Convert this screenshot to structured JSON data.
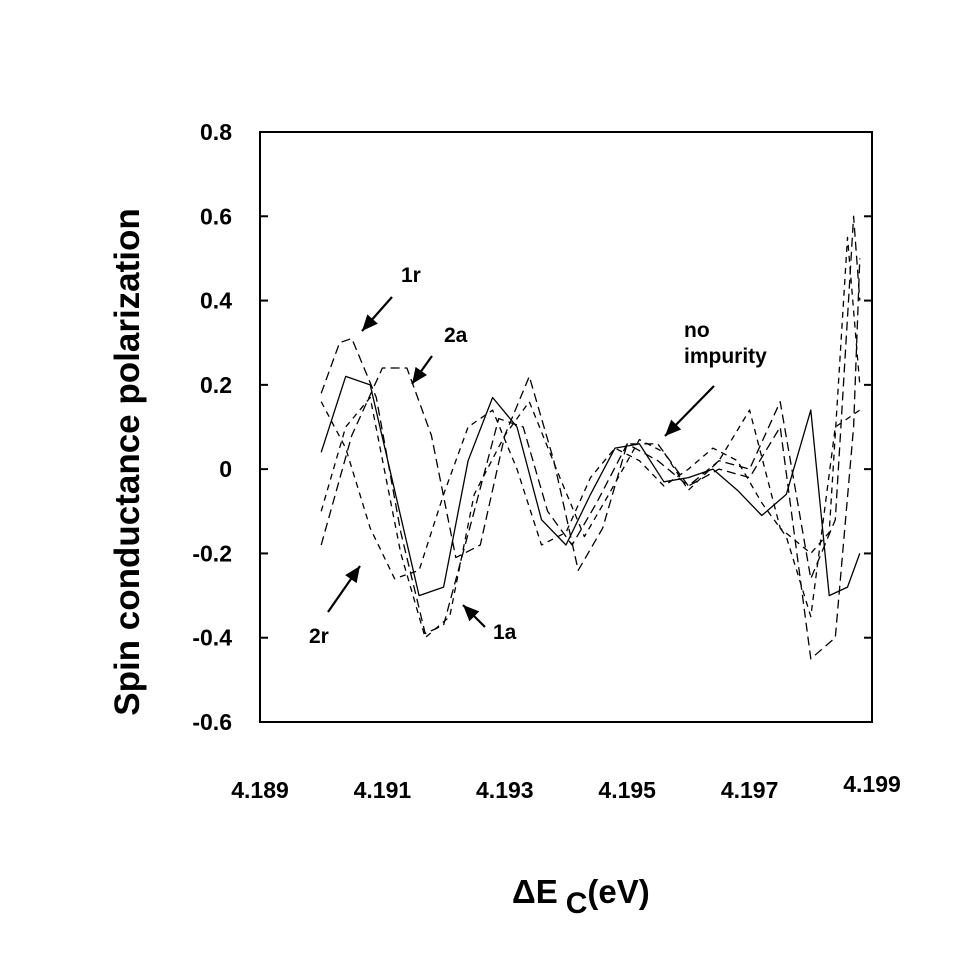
{
  "chart_data": {
    "type": "line",
    "title": "",
    "ylabel": "Spin conductance polarization",
    "xlabel_main": "ΔE",
    "xlabel_sub": "C",
    "xlabel_unit": "(eV)",
    "xlim": [
      4.189,
      4.199
    ],
    "ylim": [
      -0.6,
      0.8
    ],
    "x_ticks": [
      4.189,
      4.191,
      4.193,
      4.195,
      4.197,
      4.199
    ],
    "x_tick_labels": [
      "4.189",
      "4.191",
      "4.193",
      "4.195",
      "4.197",
      "4.199"
    ],
    "y_ticks": [
      -0.6,
      -0.4,
      -0.2,
      0,
      0.2,
      0.4,
      0.6,
      0.8
    ],
    "y_tick_labels": [
      "-0.6",
      "-0.4",
      "-0.2",
      "0",
      "0.2",
      "0.4",
      "0.6",
      "0.8"
    ],
    "grid": false,
    "legend": "none",
    "series": [
      {
        "style": "solid",
        "x": [
          4.19,
          4.1904,
          4.1908,
          4.1912,
          4.1916,
          4.192,
          4.1924,
          4.1928,
          4.1932,
          4.1936,
          4.194,
          4.1944,
          4.1948,
          4.1952,
          4.1956,
          4.196,
          4.1964,
          4.1968,
          4.1972,
          4.1976,
          4.198,
          4.1983,
          4.1986,
          4.1988
        ],
        "y": [
          0.04,
          0.22,
          0.2,
          -0.05,
          -0.3,
          -0.28,
          0.02,
          0.17,
          0.1,
          -0.12,
          -0.18,
          -0.06,
          0.05,
          0.06,
          -0.03,
          -0.02,
          0.0,
          -0.05,
          -0.11,
          -0.06,
          0.14,
          -0.3,
          -0.28,
          -0.2
        ]
      },
      {
        "style": "dashed",
        "x": [
          4.19,
          4.1903,
          4.1905,
          4.1909,
          4.1913,
          4.1917,
          4.192,
          4.1925,
          4.1929,
          4.1933,
          4.1937,
          4.1941,
          4.1945,
          4.195,
          4.1955,
          4.196,
          4.1965,
          4.197,
          4.1975,
          4.198,
          4.1984,
          4.1987,
          4.1988
        ],
        "y": [
          0.18,
          0.3,
          0.31,
          0.17,
          -0.15,
          -0.39,
          -0.37,
          -0.1,
          0.12,
          0.1,
          -0.1,
          -0.18,
          -0.08,
          0.06,
          0.02,
          -0.04,
          0.0,
          -0.02,
          0.1,
          -0.45,
          -0.4,
          0.1,
          0.5
        ]
      },
      {
        "style": "dashed",
        "x": [
          4.19,
          4.1904,
          4.1908,
          4.1912,
          4.1916,
          4.192,
          4.1924,
          4.1928,
          4.1932,
          4.1936,
          4.194,
          4.1944,
          4.1948,
          4.1952,
          4.1956,
          4.196,
          4.1964,
          4.1968,
          4.1972,
          4.1976,
          4.198,
          4.1984,
          4.1988
        ],
        "y": [
          0.16,
          0.05,
          -0.14,
          -0.26,
          -0.24,
          -0.06,
          0.1,
          0.14,
          0.0,
          -0.18,
          -0.15,
          -0.02,
          0.05,
          0.02,
          -0.04,
          0.0,
          0.05,
          0.02,
          -0.08,
          -0.16,
          -0.35,
          0.1,
          0.14
        ]
      },
      {
        "style": "dashed",
        "x": [
          4.19,
          4.1905,
          4.191,
          4.1914,
          4.1918,
          4.1922,
          4.1926,
          4.193,
          4.1934,
          4.1938,
          4.1942,
          4.1946,
          4.195,
          4.1955,
          4.196,
          4.1965,
          4.197,
          4.1975,
          4.198,
          4.1984,
          4.1987,
          4.1988
        ],
        "y": [
          -0.18,
          0.08,
          0.24,
          0.24,
          0.08,
          -0.21,
          -0.18,
          0.08,
          0.22,
          0.02,
          -0.24,
          -0.14,
          0.06,
          0.06,
          -0.04,
          0.02,
          0.0,
          0.16,
          -0.26,
          -0.12,
          0.6,
          0.4
        ]
      },
      {
        "style": "dashed",
        "x": [
          4.19,
          4.1904,
          4.1908,
          4.1913,
          4.1917,
          4.1921,
          4.1925,
          4.193,
          4.1934,
          4.1939,
          4.1943,
          4.1947,
          4.1952,
          4.1956,
          4.196,
          4.1965,
          4.197,
          4.1975,
          4.198,
          4.1983,
          4.1986,
          4.1988
        ],
        "y": [
          -0.1,
          0.1,
          0.17,
          -0.2,
          -0.4,
          -0.35,
          -0.06,
          0.08,
          0.16,
          -0.02,
          -0.16,
          -0.06,
          0.07,
          0.04,
          -0.05,
          0.02,
          0.14,
          -0.14,
          -0.2,
          -0.15,
          0.55,
          0.2
        ]
      }
    ],
    "annotations": [
      {
        "id": "1r",
        "lines": [
          "1r"
        ]
      },
      {
        "id": "2a",
        "lines": [
          "2a"
        ]
      },
      {
        "id": "no-impurity",
        "lines": [
          "no",
          "impurity"
        ]
      },
      {
        "id": "2r",
        "lines": [
          "2r"
        ]
      },
      {
        "id": "1a",
        "lines": [
          "1a"
        ]
      }
    ]
  }
}
